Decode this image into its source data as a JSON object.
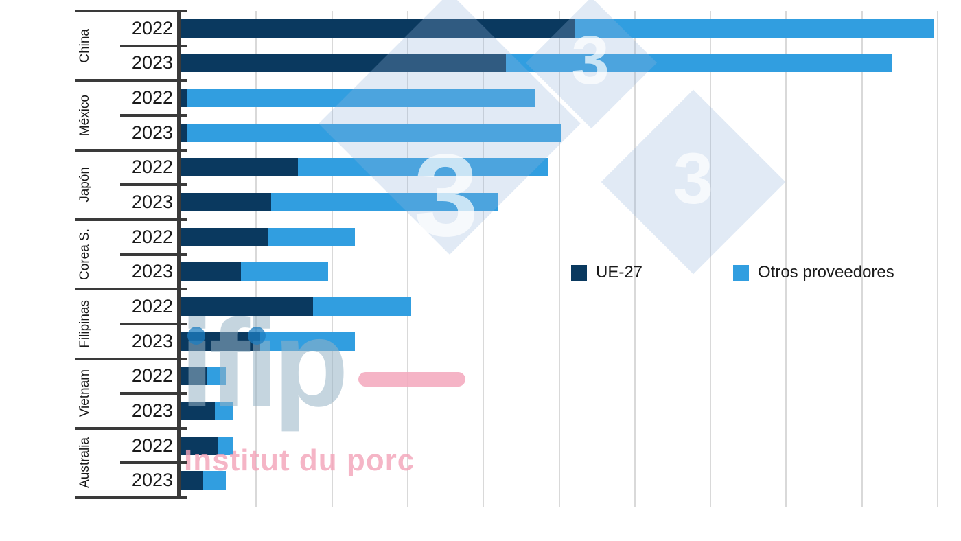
{
  "watermark": {
    "three": "3",
    "ifip": "ifip",
    "institut": "Institut du porc"
  },
  "legend": [
    {
      "label": "UE-27",
      "color": "#0a395f"
    },
    {
      "label": "Otros proveedores",
      "color": "#319ee0"
    }
  ],
  "chart_data": {
    "type": "bar",
    "orientation": "horizontal",
    "stacked": true,
    "title": "",
    "xlabel": "",
    "ylabel": "",
    "axis_value_labels_visible": false,
    "units": "gridline units (x-axis unlabeled; 10 gridlines, spacing = 1)",
    "xlim": [
      0,
      10.3
    ],
    "grid": true,
    "gridline_count": 10,
    "legend_position": "middle-right",
    "series_names": [
      "UE-27",
      "Otros proveedores"
    ],
    "series_colors": [
      "#0a395f",
      "#319ee0"
    ],
    "groups": [
      {
        "country": "China",
        "bars": [
          {
            "year": "2022",
            "values": [
              5.2,
              4.75
            ]
          },
          {
            "year": "2023",
            "values": [
              4.3,
              5.1
            ]
          }
        ]
      },
      {
        "country": "México",
        "bars": [
          {
            "year": "2022",
            "values": [
              0.08,
              4.6
            ]
          },
          {
            "year": "2023",
            "values": [
              0.08,
              4.95
            ]
          }
        ]
      },
      {
        "country": "Japón",
        "bars": [
          {
            "year": "2022",
            "values": [
              1.55,
              3.3
            ]
          },
          {
            "year": "2023",
            "values": [
              1.2,
              3.0
            ]
          }
        ]
      },
      {
        "country": "Corea S.",
        "bars": [
          {
            "year": "2022",
            "values": [
              1.15,
              1.15
            ]
          },
          {
            "year": "2023",
            "values": [
              0.8,
              1.15
            ]
          }
        ]
      },
      {
        "country": "Filipinas",
        "bars": [
          {
            "year": "2022",
            "values": [
              1.75,
              1.3
            ]
          },
          {
            "year": "2023",
            "values": [
              1.05,
              1.25
            ]
          }
        ]
      },
      {
        "country": "Vietnam",
        "bars": [
          {
            "year": "2022",
            "values": [
              0.35,
              0.25
            ]
          },
          {
            "year": "2023",
            "values": [
              0.45,
              0.25
            ]
          }
        ]
      },
      {
        "country": "Australia",
        "bars": [
          {
            "year": "2022",
            "values": [
              0.5,
              0.2
            ]
          },
          {
            "year": "2023",
            "values": [
              0.3,
              0.3
            ]
          }
        ]
      }
    ]
  }
}
